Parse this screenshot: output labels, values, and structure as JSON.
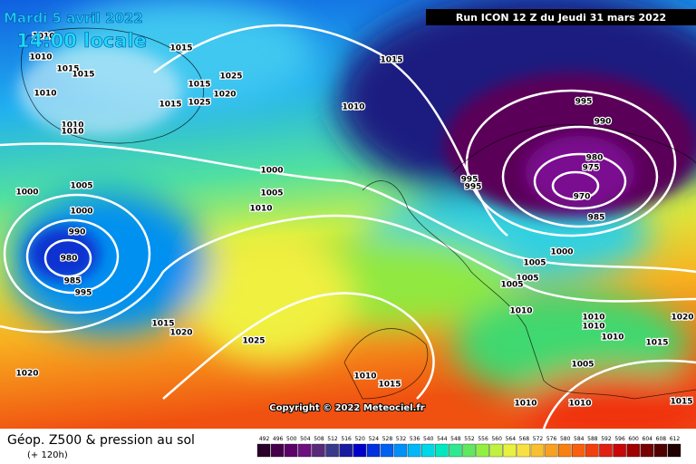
{
  "header": {
    "date": "Mardi 5 avril 2022",
    "time": "14:00 locale",
    "run": "Run ICON 12 Z du Jeudi 31 mars 2022"
  },
  "map": {
    "isobar_labels": [
      "1015",
      "1010",
      "1010",
      "1015",
      "1015",
      "1010",
      "1025",
      "1020",
      "1015",
      "1015",
      "1025",
      "1010",
      "1010",
      "1015",
      "1010",
      "995",
      "990",
      "980",
      "975",
      "970",
      "985",
      "995",
      "995",
      "1000",
      "1005",
      "1010",
      "1000",
      "1005",
      "1000",
      "990",
      "980",
      "985",
      "995",
      "1000",
      "1005",
      "1005",
      "1005",
      "1010",
      "1010",
      "1010",
      "1010",
      "1020",
      "1015",
      "1005",
      "1015",
      "1020",
      "1025",
      "1020",
      "1010",
      "1015",
      "1010",
      "1010",
      "1015"
    ],
    "copyright": "Copyright © 2022 Meteociel.fr"
  },
  "footer": {
    "title": "Géop. Z500 & pression au sol",
    "subtitle": "(+ 120h)",
    "scale": {
      "labels": [
        "492",
        "496",
        "500",
        "504",
        "508",
        "512",
        "516",
        "520",
        "524",
        "528",
        "532",
        "536",
        "540",
        "544",
        "548",
        "552",
        "556",
        "560",
        "564",
        "568",
        "572",
        "576",
        "580",
        "584",
        "588",
        "592",
        "596",
        "600",
        "604",
        "608",
        "612"
      ],
      "colors": [
        "#2a0028",
        "#46004a",
        "#5c006a",
        "#6e1080",
        "#5a2a7a",
        "#3a3a8a",
        "#1a1aa0",
        "#0000c8",
        "#0030e0",
        "#0060f0",
        "#0090f8",
        "#00b8f8",
        "#00d8e8",
        "#00e8c0",
        "#30e890",
        "#60e860",
        "#90f040",
        "#c0f040",
        "#e8f040",
        "#f8e040",
        "#f8c030",
        "#f8a020",
        "#f88010",
        "#f86010",
        "#f04010",
        "#e02010",
        "#c80808",
        "#a00000",
        "#780000",
        "#500000",
        "#200000"
      ]
    }
  }
}
